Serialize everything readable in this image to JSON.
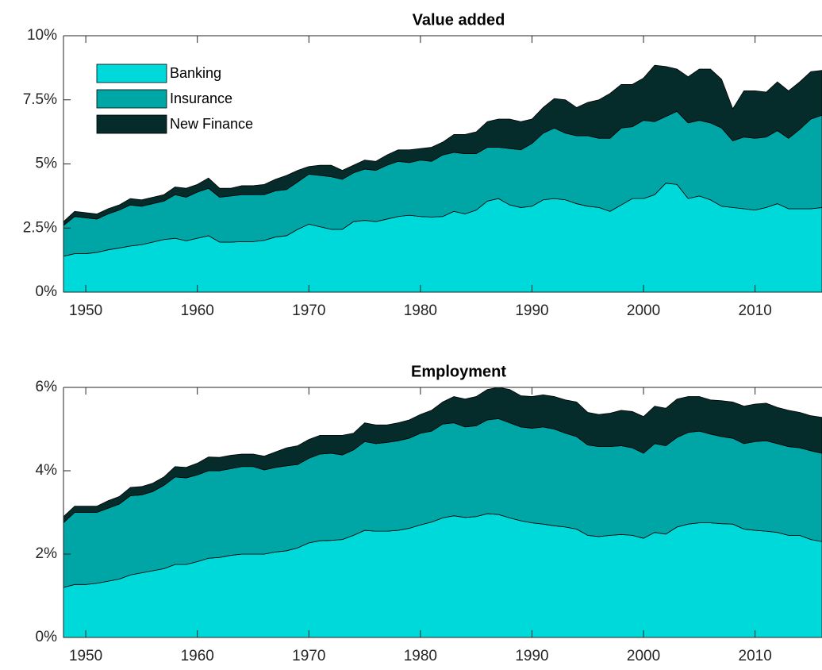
{
  "chart_data": [
    {
      "type": "stacked-area",
      "title": "Value added",
      "x": [
        1948,
        1949,
        1950,
        1951,
        1952,
        1953,
        1954,
        1955,
        1956,
        1957,
        1958,
        1959,
        1960,
        1961,
        1962,
        1963,
        1964,
        1965,
        1966,
        1967,
        1968,
        1969,
        1970,
        1971,
        1972,
        1973,
        1974,
        1975,
        1976,
        1977,
        1978,
        1979,
        1980,
        1981,
        1982,
        1983,
        1984,
        1985,
        1986,
        1987,
        1988,
        1989,
        1990,
        1991,
        1992,
        1993,
        1994,
        1995,
        1996,
        1997,
        1998,
        1999,
        2000,
        2001,
        2002,
        2003,
        2004,
        2005,
        2006,
        2007,
        2008,
        2009,
        2010,
        2011,
        2012,
        2013,
        2014,
        2015,
        2016
      ],
      "series": [
        {
          "name": "Banking",
          "color": "#00d9d9",
          "values": [
            1.4,
            1.5,
            1.5,
            1.55,
            1.65,
            1.72,
            1.8,
            1.85,
            1.95,
            2.05,
            2.1,
            2.0,
            2.1,
            2.2,
            1.95,
            1.95,
            1.97,
            1.97,
            2.02,
            2.15,
            2.2,
            2.45,
            2.65,
            2.55,
            2.45,
            2.45,
            2.75,
            2.8,
            2.75,
            2.85,
            2.95,
            3.0,
            2.95,
            2.93,
            2.95,
            3.15,
            3.05,
            3.2,
            3.55,
            3.65,
            3.4,
            3.3,
            3.35,
            3.6,
            3.65,
            3.6,
            3.45,
            3.35,
            3.3,
            3.15,
            3.4,
            3.65,
            3.65,
            3.8,
            4.25,
            4.2,
            3.65,
            3.75,
            3.6,
            3.35,
            3.3,
            3.25,
            3.2,
            3.3,
            3.45,
            3.25,
            3.25,
            3.25,
            3.3
          ]
        },
        {
          "name": "Insurance",
          "color": "#00a6a6",
          "values": [
            1.2,
            1.45,
            1.4,
            1.3,
            1.4,
            1.48,
            1.6,
            1.5,
            1.5,
            1.5,
            1.7,
            1.7,
            1.8,
            1.85,
            1.75,
            1.8,
            1.83,
            1.83,
            1.78,
            1.8,
            1.8,
            1.85,
            1.95,
            2.0,
            2.05,
            1.95,
            1.9,
            2.0,
            2.0,
            2.1,
            2.15,
            2.05,
            2.2,
            2.17,
            2.4,
            2.3,
            2.35,
            2.2,
            2.1,
            2.0,
            2.2,
            2.25,
            2.45,
            2.6,
            2.75,
            2.6,
            2.65,
            2.75,
            2.7,
            2.85,
            3.0,
            2.8,
            3.05,
            2.85,
            2.6,
            2.85,
            2.95,
            2.95,
            3.0,
            3.05,
            2.6,
            2.8,
            2.8,
            2.75,
            2.85,
            2.75,
            3.1,
            3.5,
            3.6
          ]
        },
        {
          "name": "New Finance",
          "color": "#062b2b",
          "values": [
            0.15,
            0.2,
            0.2,
            0.2,
            0.2,
            0.2,
            0.25,
            0.25,
            0.25,
            0.25,
            0.3,
            0.35,
            0.3,
            0.4,
            0.35,
            0.3,
            0.35,
            0.35,
            0.4,
            0.45,
            0.55,
            0.45,
            0.3,
            0.4,
            0.45,
            0.35,
            0.3,
            0.35,
            0.35,
            0.4,
            0.45,
            0.5,
            0.45,
            0.55,
            0.5,
            0.7,
            0.75,
            0.85,
            1.0,
            1.1,
            1.15,
            1.1,
            0.95,
            1.0,
            1.15,
            1.3,
            1.1,
            1.3,
            1.5,
            1.75,
            1.7,
            1.65,
            1.65,
            2.2,
            1.95,
            1.65,
            1.8,
            2.0,
            2.1,
            1.9,
            1.25,
            1.8,
            1.85,
            1.75,
            1.9,
            1.85,
            1.85,
            1.85,
            1.75
          ]
        }
      ],
      "xlim": [
        1948,
        2016
      ],
      "xticks": [
        1950,
        1960,
        1970,
        1980,
        1990,
        2000,
        2010
      ],
      "ylim": [
        0,
        10
      ],
      "yticks": [
        {
          "value": 0,
          "label": "0%"
        },
        {
          "value": 2.5,
          "label": "2.5%"
        },
        {
          "value": 5,
          "label": "5%"
        },
        {
          "value": 7.5,
          "label": "7.5%"
        },
        {
          "value": 10,
          "label": "10%"
        }
      ],
      "legend": "upper left"
    },
    {
      "type": "stacked-area",
      "title": "Employment",
      "x": [
        1948,
        1949,
        1950,
        1951,
        1952,
        1953,
        1954,
        1955,
        1956,
        1957,
        1958,
        1959,
        1960,
        1961,
        1962,
        1963,
        1964,
        1965,
        1966,
        1967,
        1968,
        1969,
        1970,
        1971,
        1972,
        1973,
        1974,
        1975,
        1976,
        1977,
        1978,
        1979,
        1980,
        1981,
        1982,
        1983,
        1984,
        1985,
        1986,
        1987,
        1988,
        1989,
        1990,
        1991,
        1992,
        1993,
        1994,
        1995,
        1996,
        1997,
        1998,
        1999,
        2000,
        2001,
        2002,
        2003,
        2004,
        2005,
        2006,
        2007,
        2008,
        2009,
        2010,
        2011,
        2012,
        2013,
        2014,
        2015,
        2016
      ],
      "series": [
        {
          "color": "#00d9d9",
          "values": [
            1.2,
            1.27,
            1.27,
            1.3,
            1.35,
            1.4,
            1.5,
            1.55,
            1.6,
            1.65,
            1.75,
            1.75,
            1.82,
            1.9,
            1.92,
            1.97,
            2.0,
            2.0,
            2.0,
            2.05,
            2.08,
            2.15,
            2.27,
            2.32,
            2.33,
            2.35,
            2.45,
            2.57,
            2.55,
            2.55,
            2.57,
            2.62,
            2.7,
            2.77,
            2.87,
            2.92,
            2.88,
            2.9,
            2.97,
            2.95,
            2.87,
            2.8,
            2.75,
            2.72,
            2.68,
            2.65,
            2.6,
            2.45,
            2.42,
            2.45,
            2.47,
            2.45,
            2.38,
            2.52,
            2.48,
            2.65,
            2.72,
            2.75,
            2.75,
            2.73,
            2.72,
            2.6,
            2.57,
            2.55,
            2.52,
            2.45,
            2.45,
            2.35,
            2.3
          ]
        },
        {
          "color": "#00a6a6",
          "values": [
            1.55,
            1.73,
            1.73,
            1.7,
            1.75,
            1.8,
            1.9,
            1.87,
            1.9,
            2.0,
            2.1,
            2.08,
            2.08,
            2.1,
            2.08,
            2.08,
            2.1,
            2.1,
            2.02,
            2.03,
            2.04,
            2.0,
            2.03,
            2.08,
            2.09,
            2.03,
            2.05,
            2.13,
            2.1,
            2.13,
            2.15,
            2.16,
            2.2,
            2.18,
            2.25,
            2.23,
            2.17,
            2.18,
            2.25,
            2.3,
            2.28,
            2.25,
            2.27,
            2.33,
            2.32,
            2.25,
            2.22,
            2.17,
            2.16,
            2.13,
            2.13,
            2.1,
            2.04,
            2.13,
            2.12,
            2.15,
            2.2,
            2.2,
            2.13,
            2.09,
            2.06,
            2.05,
            2.13,
            2.17,
            2.13,
            2.13,
            2.1,
            2.13,
            2.12
          ]
        },
        {
          "color": "#062b2b",
          "values": [
            0.15,
            0.15,
            0.15,
            0.15,
            0.18,
            0.18,
            0.2,
            0.2,
            0.2,
            0.2,
            0.25,
            0.25,
            0.28,
            0.33,
            0.32,
            0.32,
            0.3,
            0.3,
            0.33,
            0.37,
            0.43,
            0.45,
            0.45,
            0.45,
            0.43,
            0.47,
            0.4,
            0.45,
            0.45,
            0.42,
            0.43,
            0.44,
            0.45,
            0.5,
            0.53,
            0.63,
            0.67,
            0.7,
            0.73,
            0.75,
            0.8,
            0.75,
            0.76,
            0.77,
            0.78,
            0.8,
            0.83,
            0.78,
            0.77,
            0.8,
            0.85,
            0.87,
            0.88,
            0.9,
            0.9,
            0.92,
            0.86,
            0.83,
            0.82,
            0.86,
            0.87,
            0.9,
            0.9,
            0.9,
            0.87,
            0.87,
            0.85,
            0.84,
            0.86
          ]
        }
      ],
      "xlim": [
        1948,
        2016
      ],
      "xticks": [
        1950,
        1960,
        1970,
        1980,
        1990,
        2000,
        2010
      ],
      "ylim": [
        0,
        6
      ],
      "yticks": [
        {
          "value": 0,
          "label": "0%"
        },
        {
          "value": 2,
          "label": "2%"
        },
        {
          "value": 4,
          "label": "4%"
        },
        {
          "value": 6,
          "label": "6%"
        }
      ]
    }
  ]
}
